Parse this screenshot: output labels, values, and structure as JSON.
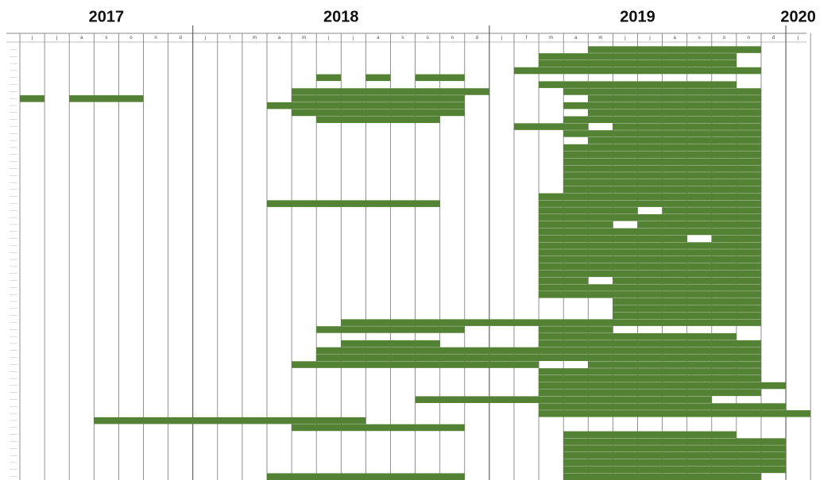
{
  "chart_data": {
    "type": "gantt",
    "color": "#548235",
    "xlim": [
      "2017-06",
      "2020-02"
    ],
    "years": [
      "2017",
      "2018",
      "2019",
      "2020"
    ],
    "month_labels": [
      "j",
      "j",
      "a",
      "s",
      "o",
      "n",
      "d",
      "j",
      "f",
      "m",
      "a",
      "m",
      "j",
      "j",
      "a",
      "s",
      "o",
      "n",
      "d",
      "j",
      "f",
      "m",
      "a",
      "m",
      "j",
      "j",
      "a",
      "s",
      "o",
      "n",
      "d",
      "j"
    ],
    "tasks": [
      {
        "bars": [
          [
            "2019-05",
            "2019-12"
          ]
        ]
      },
      {
        "bars": [
          [
            "2019-03",
            "2019-11"
          ]
        ]
      },
      {
        "bars": [
          [
            "2019-03",
            "2019-11"
          ]
        ]
      },
      {
        "bars": [
          [
            "2019-02",
            "2019-12"
          ]
        ]
      },
      {
        "bars": [
          [
            "2018-06",
            "2018-07"
          ],
          [
            "2018-08",
            "2018-09"
          ],
          [
            "2018-10",
            "2018-12"
          ]
        ]
      },
      {
        "bars": [
          [
            "2019-03",
            "2019-11"
          ]
        ]
      },
      {
        "bars": [
          [
            "2018-05",
            "2019-01"
          ],
          [
            "2019-04",
            "2019-12"
          ]
        ]
      },
      {
        "bars": [
          [
            "2017-06",
            "2017-07"
          ],
          [
            "2017-08",
            "2017-11"
          ],
          [
            "2018-05",
            "2018-12"
          ],
          [
            "2019-05",
            "2019-12"
          ]
        ]
      },
      {
        "bars": [
          [
            "2018-04",
            "2018-12"
          ],
          [
            "2019-04",
            "2019-12"
          ]
        ]
      },
      {
        "bars": [
          [
            "2018-05",
            "2018-12"
          ],
          [
            "2019-05",
            "2019-12"
          ]
        ]
      },
      {
        "bars": [
          [
            "2018-06",
            "2018-11"
          ],
          [
            "2019-04",
            "2019-12"
          ]
        ]
      },
      {
        "bars": [
          [
            "2019-02",
            "2019-05"
          ],
          [
            "2019-06",
            "2019-12"
          ]
        ]
      },
      {
        "bars": [
          [
            "2019-04",
            "2019-12"
          ]
        ]
      },
      {
        "bars": [
          [
            "2019-05",
            "2019-12"
          ]
        ]
      },
      {
        "bars": [
          [
            "2019-04",
            "2019-12"
          ]
        ]
      },
      {
        "bars": [
          [
            "2019-04",
            "2019-12"
          ]
        ]
      },
      {
        "bars": [
          [
            "2019-04",
            "2019-12"
          ]
        ]
      },
      {
        "bars": [
          [
            "2019-04",
            "2019-12"
          ]
        ]
      },
      {
        "bars": [
          [
            "2019-04",
            "2019-12"
          ]
        ]
      },
      {
        "bars": [
          [
            "2019-04",
            "2019-12"
          ]
        ]
      },
      {
        "bars": [
          [
            "2019-04",
            "2019-12"
          ]
        ]
      },
      {
        "bars": [
          [
            "2019-03",
            "2019-12"
          ]
        ]
      },
      {
        "bars": [
          [
            "2018-04",
            "2018-11"
          ],
          [
            "2019-03",
            "2019-12"
          ]
        ]
      },
      {
        "bars": [
          [
            "2019-03",
            "2019-07"
          ],
          [
            "2019-08",
            "2019-12"
          ]
        ]
      },
      {
        "bars": [
          [
            "2019-03",
            "2019-12"
          ]
        ]
      },
      {
        "bars": [
          [
            "2019-03",
            "2019-06"
          ],
          [
            "2019-07",
            "2019-12"
          ]
        ]
      },
      {
        "bars": [
          [
            "2019-03",
            "2019-12"
          ]
        ]
      },
      {
        "bars": [
          [
            "2019-03",
            "2019-09"
          ],
          [
            "2019-10",
            "2019-12"
          ]
        ]
      },
      {
        "bars": [
          [
            "2019-03",
            "2019-12"
          ]
        ]
      },
      {
        "bars": [
          [
            "2019-03",
            "2019-12"
          ]
        ]
      },
      {
        "bars": [
          [
            "2019-03",
            "2019-12"
          ]
        ]
      },
      {
        "bars": [
          [
            "2019-03",
            "2019-12"
          ]
        ]
      },
      {
        "bars": [
          [
            "2019-03",
            "2019-12"
          ]
        ]
      },
      {
        "bars": [
          [
            "2019-03",
            "2019-05"
          ],
          [
            "2019-06",
            "2019-12"
          ]
        ]
      },
      {
        "bars": [
          [
            "2019-03",
            "2019-12"
          ]
        ]
      },
      {
        "bars": [
          [
            "2019-03",
            "2019-12"
          ]
        ]
      },
      {
        "bars": [
          [
            "2019-06",
            "2019-12"
          ]
        ]
      },
      {
        "bars": [
          [
            "2019-06",
            "2019-12"
          ]
        ]
      },
      {
        "bars": [
          [
            "2019-06",
            "2019-12"
          ]
        ]
      },
      {
        "bars": [
          [
            "2018-07",
            "2019-12"
          ]
        ]
      },
      {
        "bars": [
          [
            "2018-06",
            "2018-12"
          ],
          [
            "2019-03",
            "2019-06"
          ]
        ]
      },
      {
        "bars": [
          [
            "2019-03",
            "2019-11"
          ]
        ]
      },
      {
        "bars": [
          [
            "2018-07",
            "2018-11"
          ],
          [
            "2019-03",
            "2019-12"
          ]
        ]
      },
      {
        "bars": [
          [
            "2018-06",
            "2019-12"
          ]
        ]
      },
      {
        "bars": [
          [
            "2018-06",
            "2019-12"
          ]
        ]
      },
      {
        "bars": [
          [
            "2018-05",
            "2019-03"
          ],
          [
            "2019-05",
            "2019-12"
          ]
        ]
      },
      {
        "bars": [
          [
            "2019-03",
            "2019-12"
          ]
        ]
      },
      {
        "bars": [
          [
            "2019-03",
            "2019-12"
          ]
        ]
      },
      {
        "bars": [
          [
            "2019-03",
            "2020-01"
          ]
        ]
      },
      {
        "bars": [
          [
            "2019-03",
            "2019-12"
          ]
        ]
      },
      {
        "bars": [
          [
            "2018-10",
            "2019-10"
          ]
        ]
      },
      {
        "bars": [
          [
            "2019-03",
            "2020-01"
          ]
        ]
      },
      {
        "bars": [
          [
            "2019-03",
            "2020-02"
          ]
        ]
      },
      {
        "bars": [
          [
            "2017-09",
            "2018-08"
          ]
        ]
      },
      {
        "bars": [
          [
            "2018-05",
            "2018-12"
          ]
        ]
      },
      {
        "bars": [
          [
            "2019-04",
            "2019-11"
          ]
        ]
      },
      {
        "bars": [
          [
            "2019-04",
            "2020-01"
          ]
        ]
      },
      {
        "bars": [
          [
            "2019-04",
            "2020-01"
          ]
        ]
      },
      {
        "bars": [
          [
            "2019-04",
            "2020-01"
          ]
        ]
      },
      {
        "bars": [
          [
            "2019-04",
            "2020-01"
          ]
        ]
      },
      {
        "bars": [
          [
            "2019-04",
            "2020-01"
          ]
        ]
      },
      {
        "bars": [
          [
            "2018-04",
            "2018-12"
          ],
          [
            "2019-04",
            "2019-12"
          ]
        ]
      }
    ]
  }
}
